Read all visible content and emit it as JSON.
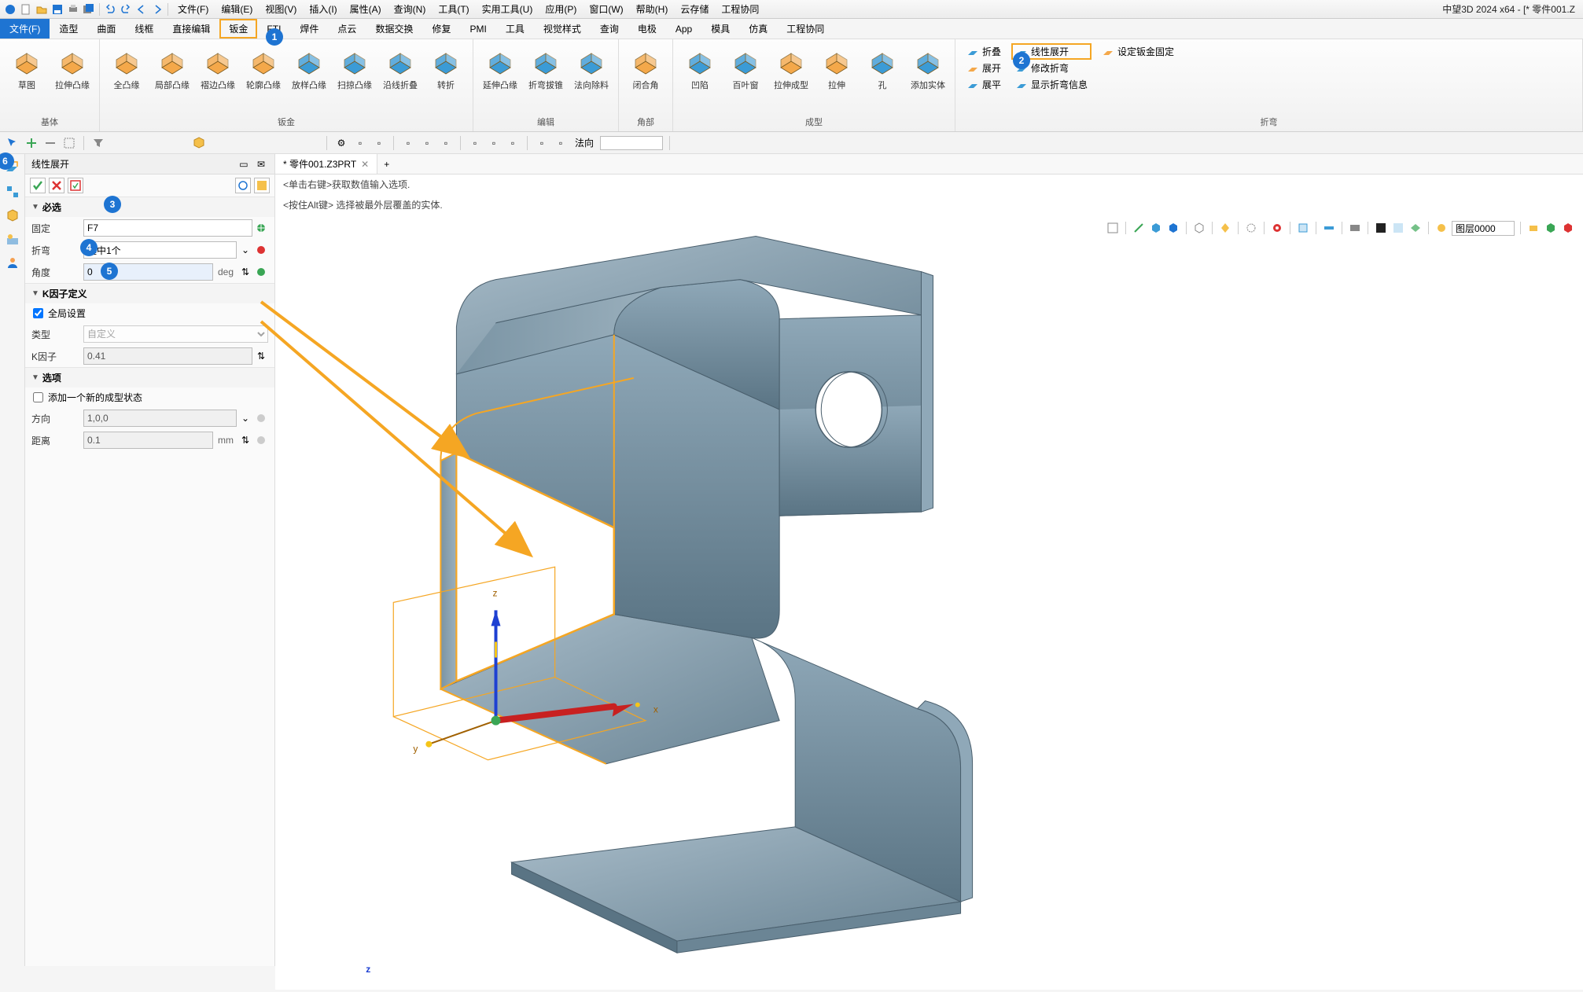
{
  "app_title": "中望3D 2024 x64 - [* 零件001.Z",
  "menus": [
    "文件(F)",
    "编辑(E)",
    "视图(V)",
    "插入(I)",
    "属性(A)",
    "查询(N)",
    "工具(T)",
    "实用工具(U)",
    "应用(P)",
    "窗口(W)",
    "帮助(H)",
    "云存储",
    "工程协同"
  ],
  "ribbon_tabs": [
    "文件(F)",
    "造型",
    "曲面",
    "线框",
    "直接编辑",
    "钣金",
    "FTI",
    "焊件",
    "点云",
    "数据交换",
    "修复",
    "PMI",
    "工具",
    "视觉样式",
    "查询",
    "电极",
    "App",
    "模具",
    "仿真",
    "工程协同"
  ],
  "ribbon_active": 0,
  "ribbon_highlight_index": 5,
  "ribbon_groups": {
    "base": {
      "label": "基体",
      "buttons": [
        "草图",
        "拉伸凸缘"
      ],
      "colors": [
        "#f4a84a",
        "#f4a84a"
      ]
    },
    "sheetmetal": {
      "label": "钣金",
      "buttons": [
        "全凸缘",
        "局部凸缘",
        "褶边凸缘",
        "轮廓凸缘",
        "放样凸缘",
        "扫掠凸缘",
        "沿线折叠",
        "转折"
      ],
      "colors": [
        "#f4a84a",
        "#f4a84a",
        "#f4a84a",
        "#f4a84a",
        "#3b9bd6",
        "#3b9bd6",
        "#3b9bd6",
        "#3b9bd6"
      ]
    },
    "edit": {
      "label": "编辑",
      "buttons": [
        "延伸凸缘",
        "折弯拔锥",
        "法向除料"
      ],
      "colors": [
        "#3b9bd6",
        "#3b9bd6",
        "#3b9bd6"
      ]
    },
    "corner": {
      "label": "角部",
      "buttons": [
        "闭合角"
      ],
      "colors": [
        "#f4a84a"
      ]
    },
    "form": {
      "label": "成型",
      "buttons": [
        "凹陷",
        "百叶窗",
        "拉伸成型",
        "拉伸",
        "孔",
        "添加实体"
      ],
      "colors": [
        "#3b9bd6",
        "#3b9bd6",
        "#f4a84a",
        "#f4a84a",
        "#3b9bd6",
        "#3b9bd6"
      ]
    },
    "bend": {
      "label": "折弯",
      "items": [
        {
          "label": "折叠",
          "icon": "#3b9bd6"
        },
        {
          "label": "线性展开",
          "icon": "#3b9bd6",
          "hl": true
        },
        {
          "label": "设定钣金固定",
          "icon": "#f4a84a"
        },
        {
          "label": "展开",
          "icon": "#f4a84a"
        },
        {
          "label": "修改折弯",
          "icon": "#3b9bd6"
        },
        {
          "label": "展平",
          "icon": "#3b9bd6"
        },
        {
          "label": "显示折弯信息",
          "icon": "#3b9bd6"
        }
      ]
    }
  },
  "subbar": {
    "direction_label": "法向"
  },
  "doc_tab": {
    "title": "* 零件001.Z3PRT",
    "close": "✕"
  },
  "hints": [
    "<单击右键>获取数值输入选项.",
    "<按住Alt键> 选择被最外层覆盖的实体."
  ],
  "panel": {
    "title": "线性展开",
    "sections": {
      "required": {
        "header": "必选",
        "rows": [
          {
            "label": "固定",
            "value": "F7",
            "type": "text"
          },
          {
            "label": "折弯",
            "value": "选中1个",
            "type": "select"
          },
          {
            "label": "角度",
            "value": "0",
            "unit": "deg",
            "type": "spinner"
          }
        ]
      },
      "kfactor": {
        "header": "K因子定义",
        "global_check": "全局设置",
        "global_checked": true,
        "type_label": "类型",
        "type_value": "自定义",
        "k_label": "K因子",
        "k_value": "0.41"
      },
      "options": {
        "header": "选项",
        "add_check": "添加一个新的成型状态",
        "add_checked": false,
        "dir_label": "方向",
        "dir_value": "1,0,0",
        "dist_label": "距离",
        "dist_value": "0.1",
        "dist_unit": "mm"
      }
    }
  },
  "viewport_toolbar_combo": "图层0000",
  "badges": {
    "1": "1",
    "2": "2",
    "3": "3",
    "4": "4",
    "5": "5",
    "6": "6"
  },
  "colors": {
    "accent": "#1e74d2",
    "hl": "#f5a623",
    "arrow": "#f5a623",
    "metal_light": "#8fa8b8",
    "metal_dark": "#6b8595",
    "metal_shadow": "#516673",
    "edge_hl": "#f5a623",
    "green": "#3aa655",
    "red": "#d33",
    "yellow": "#f5c518"
  },
  "axis_labels": {
    "x": "x",
    "y": "y",
    "z": "z",
    "z_bottom": "z"
  }
}
